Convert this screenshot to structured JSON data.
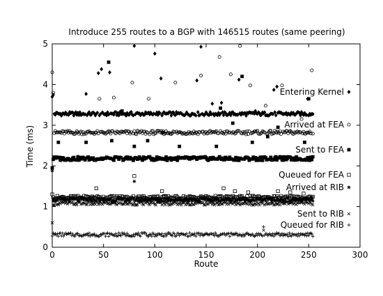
{
  "chart_data": {
    "type": "scatter",
    "title": "Introduce 255 routes to a BGP with 146515 routes (same peering)",
    "xlabel": "Route",
    "ylabel": "Time (ms)",
    "xlim": [
      0,
      300
    ],
    "ylim": [
      0,
      5
    ],
    "xticks": [
      "0",
      "50",
      "100",
      "150",
      "200",
      "250",
      "300"
    ],
    "yticks": [
      "0",
      "1",
      "2",
      "3",
      "4",
      "5"
    ],
    "grid": false,
    "legend_position": "right",
    "n_points": 255,
    "series": [
      {
        "name": "Entering Kernel",
        "marker": "filled-diamond",
        "typical": 3.28,
        "outliers": [
          [
            0,
            3.7
          ],
          [
            1,
            3.75
          ],
          [
            33,
            3.77
          ],
          [
            45,
            4.28
          ],
          [
            48,
            4.38
          ],
          [
            56,
            4.3
          ],
          [
            80,
            4.95
          ],
          [
            100,
            4.76
          ],
          [
            106,
            4.15
          ],
          [
            141,
            4.1
          ],
          [
            145,
            4.93
          ],
          [
            156,
            3.53
          ],
          [
            165,
            3.55
          ],
          [
            182,
            4.12
          ],
          [
            198,
            3.35
          ],
          [
            216,
            3.87
          ],
          [
            219,
            3.95
          ],
          [
            249,
            3.65
          ]
        ]
      },
      {
        "name": "Arrived at FEA",
        "marker": "open-circle",
        "typical": 2.82,
        "outliers": [
          [
            0,
            4.3
          ],
          [
            1,
            3.8
          ],
          [
            46,
            3.65
          ],
          [
            60,
            3.68
          ],
          [
            78,
            4.05
          ],
          [
            94,
            3.65
          ],
          [
            120,
            4.05
          ],
          [
            145,
            4.22
          ],
          [
            163,
            4.68
          ],
          [
            174,
            4.25
          ],
          [
            183,
            4.95
          ],
          [
            193,
            3.98
          ],
          [
            208,
            3.48
          ],
          [
            224,
            3.98
          ],
          [
            243,
            3.15
          ],
          [
            253,
            4.35
          ]
        ]
      },
      {
        "name": "Sent to FEA",
        "marker": "filled-square",
        "typical": 2.18,
        "outliers": [
          [
            0,
            1.95
          ],
          [
            6,
            2.58
          ],
          [
            33,
            2.58
          ],
          [
            55,
            4.55
          ],
          [
            58,
            2.62
          ],
          [
            68,
            3.35
          ],
          [
            80,
            2.48
          ],
          [
            93,
            2.62
          ],
          [
            108,
            2.82
          ],
          [
            124,
            2.48
          ],
          [
            160,
            2.48
          ],
          [
            164,
            3.42
          ],
          [
            176,
            3.05
          ],
          [
            185,
            4.2
          ],
          [
            195,
            2.58
          ],
          [
            210,
            2.72
          ],
          [
            220,
            2.95
          ],
          [
            246,
            2.58
          ],
          [
            250,
            3.65
          ]
        ]
      },
      {
        "name": "Queued for FEA",
        "marker": "open-square",
        "typical": 1.22,
        "outliers": [
          [
            0,
            1.3
          ],
          [
            43,
            1.45
          ],
          [
            80,
            1.75
          ],
          [
            107,
            1.38
          ],
          [
            167,
            1.45
          ],
          [
            178,
            1.38
          ],
          [
            191,
            1.35
          ],
          [
            220,
            1.38
          ],
          [
            232,
            1.35
          ],
          [
            245,
            1.32
          ]
        ]
      },
      {
        "name": "Arrived at RIB",
        "marker": "star",
        "typical": 1.17,
        "outliers": [
          [
            0,
            1.88
          ],
          [
            80,
            1.62
          ]
        ]
      },
      {
        "name": "Sent to RIB",
        "marker": "x-cross",
        "typical": 1.08,
        "outliers": [
          [
            0,
            0.6
          ],
          [
            108,
            1.12
          ],
          [
            206,
            0.42
          ]
        ]
      },
      {
        "name": "Queued for RIB",
        "marker": "plus",
        "typical": 0.31,
        "outliers": [
          [
            206,
            0.5
          ]
        ]
      }
    ]
  }
}
